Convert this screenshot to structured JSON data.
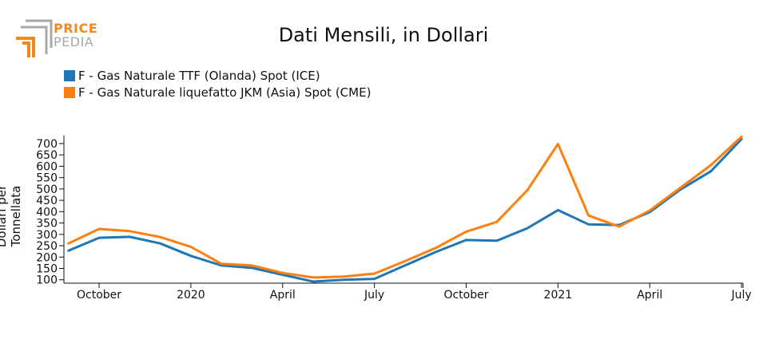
{
  "logo": {
    "line1": "PRICE",
    "line2": "PEDIA"
  },
  "colors": {
    "ttf": "#1f77b4",
    "jkm": "#ff7f0e",
    "logo_orange": "#f08a1c",
    "logo_gray": "#a8a8a8"
  },
  "chart_data": {
    "type": "line",
    "title": "Dati Mensili, in Dollari",
    "ylabel": "Dollari per Tonnellata",
    "xlabel": "",
    "ylim": [
      85,
      735
    ],
    "yticks": [
      100,
      150,
      200,
      250,
      300,
      350,
      400,
      450,
      500,
      550,
      600,
      650,
      700
    ],
    "x": [
      "2019-09",
      "2019-10",
      "2019-11",
      "2019-12",
      "2020-01",
      "2020-02",
      "2020-03",
      "2020-04",
      "2020-05",
      "2020-06",
      "2020-07",
      "2020-08",
      "2020-09",
      "2020-10",
      "2020-11",
      "2020-12",
      "2021-01",
      "2021-02",
      "2021-03",
      "2021-04",
      "2021-05",
      "2021-06",
      "2021-07"
    ],
    "xticks": [
      {
        "date": "2019-10",
        "label": "October"
      },
      {
        "date": "2020-01",
        "label": "2020"
      },
      {
        "date": "2020-04",
        "label": "April"
      },
      {
        "date": "2020-07",
        "label": "July"
      },
      {
        "date": "2020-10",
        "label": "October"
      },
      {
        "date": "2021-01",
        "label": "2021"
      },
      {
        "date": "2021-04",
        "label": "April"
      },
      {
        "date": "2021-07",
        "label": "July"
      }
    ],
    "series": [
      {
        "name": "F - Gas Naturale TTF (Olanda) Spot (ICE)",
        "values": [
          228,
          285,
          289,
          260,
          205,
          163,
          152,
          122,
          92,
          100,
          104,
          163,
          222,
          275,
          272,
          327,
          407,
          344,
          341,
          398,
          497,
          578,
          720
        ]
      },
      {
        "name": "F - Gas Naturale liquefatto JKM (Asia) Spot (CME)",
        "values": [
          260,
          324,
          314,
          288,
          245,
          170,
          163,
          130,
          110,
          114,
          127,
          182,
          240,
          312,
          355,
          495,
          698,
          383,
          334,
          405,
          505,
          605,
          730
        ]
      }
    ]
  }
}
